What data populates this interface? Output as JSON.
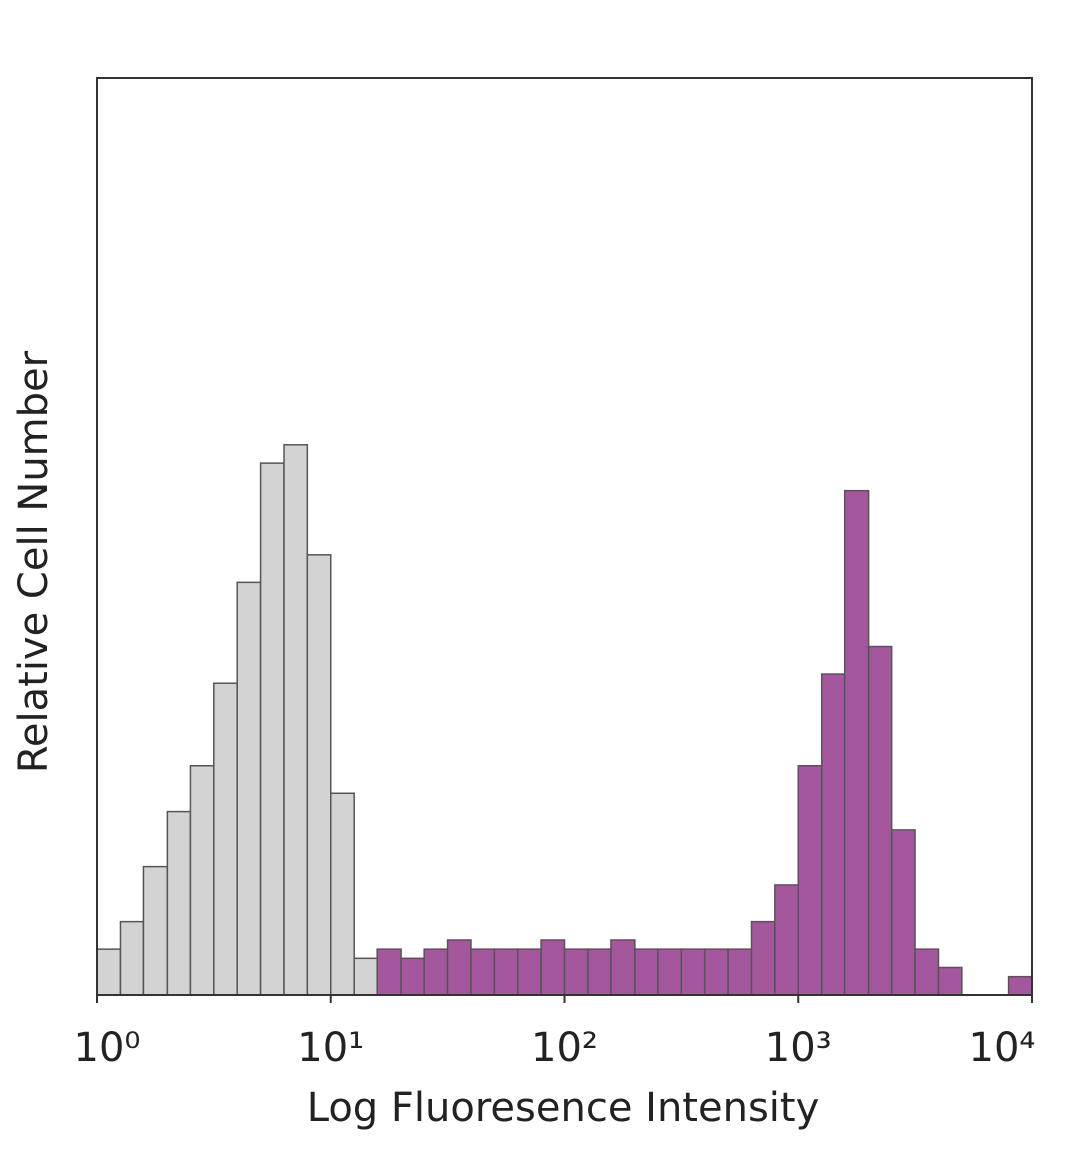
{
  "chart_data": {
    "type": "histogram",
    "x_label": "Log Fluoresence Intensity",
    "y_label": "Relative Cell Number",
    "x_scale": "log",
    "xlim": [
      1,
      10000
    ],
    "xticks": [
      {
        "value": 1,
        "label": "10⁰"
      },
      {
        "value": 10,
        "label": "10¹"
      },
      {
        "value": 100,
        "label": "10²"
      },
      {
        "value": 1000,
        "label": "10³"
      },
      {
        "value": 10000,
        "label": "10⁴"
      }
    ],
    "ylim": [
      0,
      100
    ],
    "bins": [
      1,
      1.26,
      1.58,
      2,
      2.51,
      3.16,
      3.98,
      5.01,
      6.31,
      7.94,
      10,
      12.6,
      15.8,
      20,
      25.1,
      31.6,
      39.8,
      50.1,
      63.1,
      79.4,
      100,
      126,
      158,
      200,
      251,
      316,
      398,
      501,
      631,
      794,
      1000,
      1260,
      1580,
      2000,
      2510,
      3160,
      3980,
      5010,
      6310,
      7940,
      10000
    ],
    "series": [
      {
        "color": "#a4579c",
        "values": [
          0,
          0,
          0,
          0,
          0,
          0,
          0,
          0,
          0,
          0,
          0,
          3,
          5,
          4,
          5,
          6,
          5,
          5,
          5,
          6,
          5,
          5,
          6,
          5,
          5,
          5,
          5,
          5,
          8,
          12,
          25,
          35,
          55,
          38,
          18,
          5,
          3,
          0,
          0,
          2
        ]
      },
      {
        "color": "#d3d3d3",
        "values": [
          5,
          8,
          14,
          20,
          25,
          34,
          45,
          58,
          60,
          48,
          22,
          4,
          0,
          0,
          0,
          0,
          0,
          0,
          0,
          0,
          0,
          0,
          0,
          0,
          0,
          0,
          0,
          0,
          0,
          0,
          0,
          0,
          0,
          0,
          0,
          0,
          0,
          0,
          0,
          0
        ]
      }
    ]
  }
}
